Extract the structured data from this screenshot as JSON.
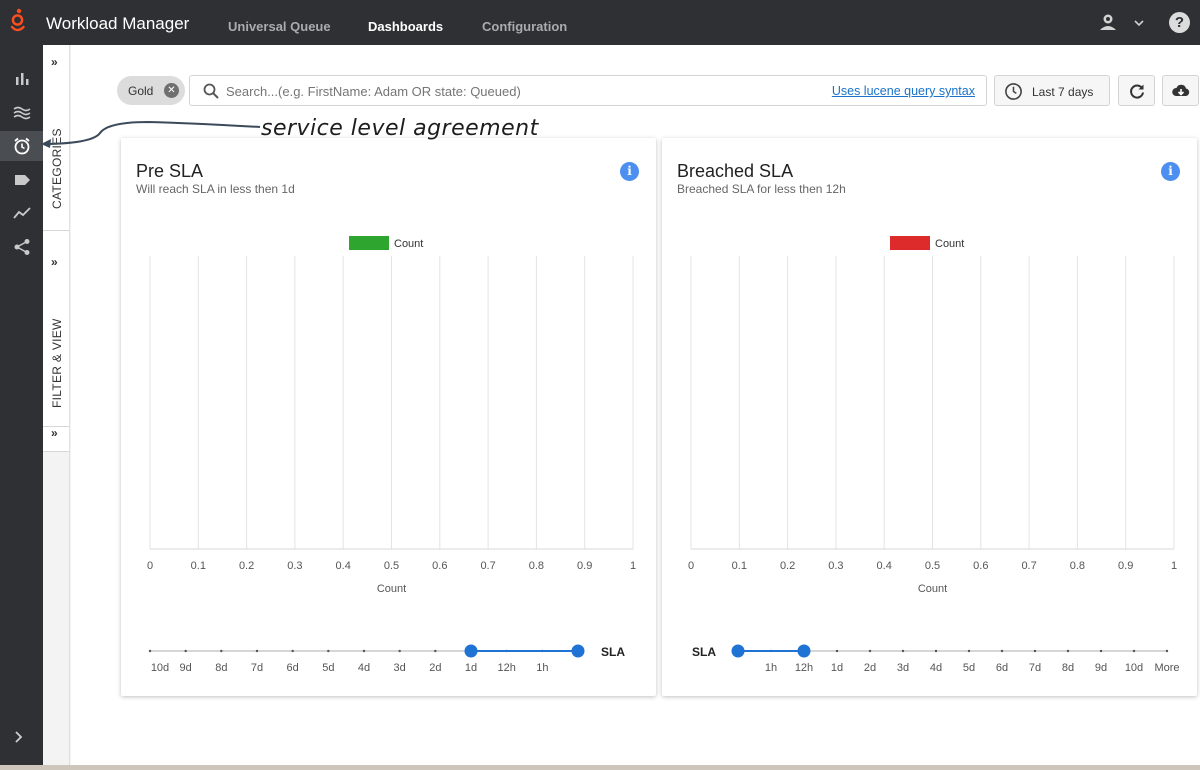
{
  "app": {
    "title": "Workload Manager",
    "logo_icon": "genesys-logo-icon",
    "accent": "#ff4f1f"
  },
  "nav": {
    "tabs": [
      {
        "label": "Universal Queue",
        "active": false
      },
      {
        "label": "Dashboards",
        "active": true
      },
      {
        "label": "Configuration",
        "active": false
      }
    ]
  },
  "header_right": {
    "user_icon": "user-icon",
    "menu_icon": "chevron-down-icon",
    "help_label": "?"
  },
  "rail": {
    "items": [
      {
        "icon": "bar-chart-icon",
        "active": false
      },
      {
        "icon": "waves-icon",
        "active": false
      },
      {
        "icon": "alarm-clock-icon",
        "active": true
      },
      {
        "icon": "tag-icon",
        "active": false
      },
      {
        "icon": "trend-line-icon",
        "active": false
      },
      {
        "icon": "share-icon",
        "active": false
      }
    ],
    "expand_icon": "chevron-right-icon"
  },
  "side_panel": {
    "chevron": "»",
    "categories_label": "CATEGORIES",
    "filter_label": "FILTER & VIEW"
  },
  "toolbar": {
    "chip_label": "Gold",
    "search_placeholder": "Search...(e.g. FirstName: Adam OR state: Queued)",
    "search_value": "",
    "lucene_link": "Uses lucene query syntax",
    "range_label": "Last 7 days",
    "refresh_icon": "refresh-icon",
    "download_icon": "cloud-download-icon"
  },
  "annotation": {
    "text": "service level agreement"
  },
  "cards": [
    {
      "title": "Pre SLA",
      "subtitle": "Will reach SLA in less then 1d",
      "info_label": "i",
      "slider": {
        "label": "SLA",
        "ticks": [
          "10d",
          "9d",
          "8d",
          "7d",
          "6d",
          "5d",
          "4d",
          "3d",
          "2d",
          "1d",
          "12h",
          "1h",
          ""
        ],
        "range": [
          "1d",
          "end"
        ]
      }
    },
    {
      "title": "Breached SLA",
      "subtitle": "Breached SLA for less then 12h",
      "info_label": "i",
      "slider": {
        "label": "SLA",
        "ticks": [
          "",
          "1h",
          "12h",
          "1d",
          "2d",
          "3d",
          "4d",
          "5d",
          "6d",
          "7d",
          "8d",
          "9d",
          "10d",
          "More"
        ],
        "range": [
          "start",
          "12h"
        ]
      }
    }
  ],
  "chart_data": [
    {
      "type": "bar",
      "orientation": "horizontal",
      "categories": [],
      "series": [
        {
          "name": "Count",
          "color": "#2ea52e",
          "values": []
        }
      ],
      "xlabel": "Count",
      "xlim": [
        0,
        1
      ],
      "xticks": [
        "0",
        "0.1",
        "0.2",
        "0.3",
        "0.4",
        "0.5",
        "0.6",
        "0.7",
        "0.8",
        "0.9",
        "1"
      ],
      "grid": true,
      "legend": "top-center"
    },
    {
      "type": "bar",
      "orientation": "horizontal",
      "categories": [],
      "series": [
        {
          "name": "Count",
          "color": "#dd2b2b",
          "values": []
        }
      ],
      "xlabel": "Count",
      "xlim": [
        0,
        1
      ],
      "xticks": [
        "0",
        "0.1",
        "0.2",
        "0.3",
        "0.4",
        "0.5",
        "0.6",
        "0.7",
        "0.8",
        "0.9",
        "1"
      ],
      "grid": true,
      "legend": "top-center"
    }
  ]
}
